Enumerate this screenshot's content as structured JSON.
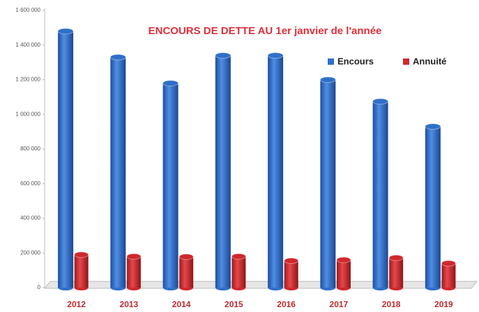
{
  "chart_data": {
    "type": "bar3d",
    "title": "ENCOURS DE DETTE AU 1er janvier de l'année",
    "categories": [
      "2012",
      "2013",
      "2014",
      "2015",
      "2016",
      "2017",
      "2018",
      "2019"
    ],
    "series": [
      {
        "name": "Encours",
        "color": "#2f6fc9",
        "values": [
          1480000,
          1330000,
          1180000,
          1340000,
          1340000,
          1200000,
          1075000,
          930000
        ]
      },
      {
        "name": "Annuité",
        "color": "#d0282c",
        "values": [
          190000,
          180000,
          178000,
          180000,
          155000,
          160000,
          172000,
          140000
        ]
      }
    ],
    "ylim": [
      0,
      1600000
    ],
    "yticks": [
      0,
      {
        "value": 200000,
        "label": "200 000"
      },
      {
        "value": 400000,
        "label": "400 000"
      },
      {
        "value": 600000,
        "label": "600 000"
      },
      {
        "value": 800000,
        "label": "800 000"
      },
      {
        "value": 1000000,
        "label": "1 000 000"
      },
      {
        "value": 1200000,
        "label": "1 200 000"
      },
      {
        "value": 1400000,
        "label": "1 400 000"
      },
      {
        "value": 1600000,
        "label": "1 600 000"
      }
    ],
    "grid": false,
    "legend": "top-right"
  }
}
